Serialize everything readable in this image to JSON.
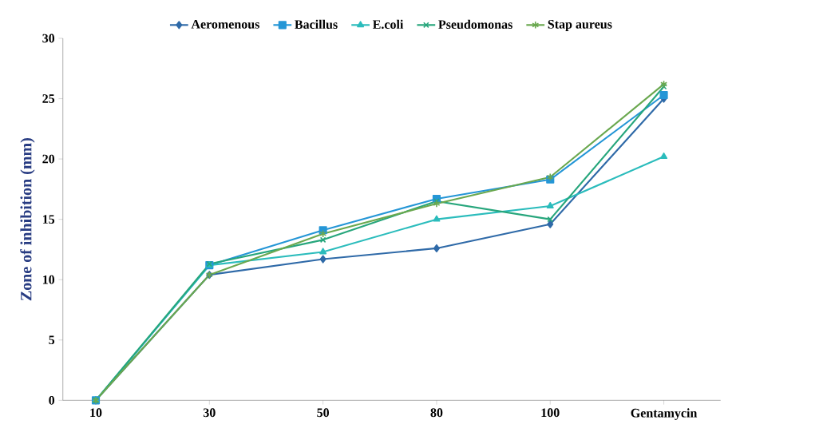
{
  "chart_data": {
    "type": "line",
    "ylabel": "Zone of inhibition (mm)",
    "categories": [
      "10",
      "30",
      "50",
      "80",
      "100",
      "Gentamycin"
    ],
    "ylim": [
      0,
      30
    ],
    "yticks": [
      0,
      5,
      10,
      15,
      20,
      25,
      30
    ],
    "legend": "top",
    "grid": false,
    "series": [
      {
        "name": "Aeromenous",
        "color": "#2f6aa8",
        "marker": "diamond",
        "values": [
          0,
          10.4,
          11.7,
          12.6,
          14.6,
          25.0
        ]
      },
      {
        "name": "Bacillus",
        "color": "#2596d6",
        "marker": "square",
        "values": [
          0,
          11.2,
          14.1,
          16.7,
          18.3,
          25.3
        ]
      },
      {
        "name": "E.coli",
        "color": "#2bbcbc",
        "marker": "triangle",
        "values": [
          0,
          11.2,
          12.3,
          15.0,
          16.1,
          20.2
        ]
      },
      {
        "name": "Pseudomonas",
        "color": "#27a67c",
        "marker": "cross",
        "values": [
          0,
          11.3,
          13.3,
          16.5,
          15.0,
          26.0
        ]
      },
      {
        "name": "Stap aureus",
        "color": "#6aa84f",
        "marker": "cross",
        "values": [
          0,
          10.4,
          13.8,
          16.3,
          18.5,
          26.2
        ]
      }
    ]
  }
}
